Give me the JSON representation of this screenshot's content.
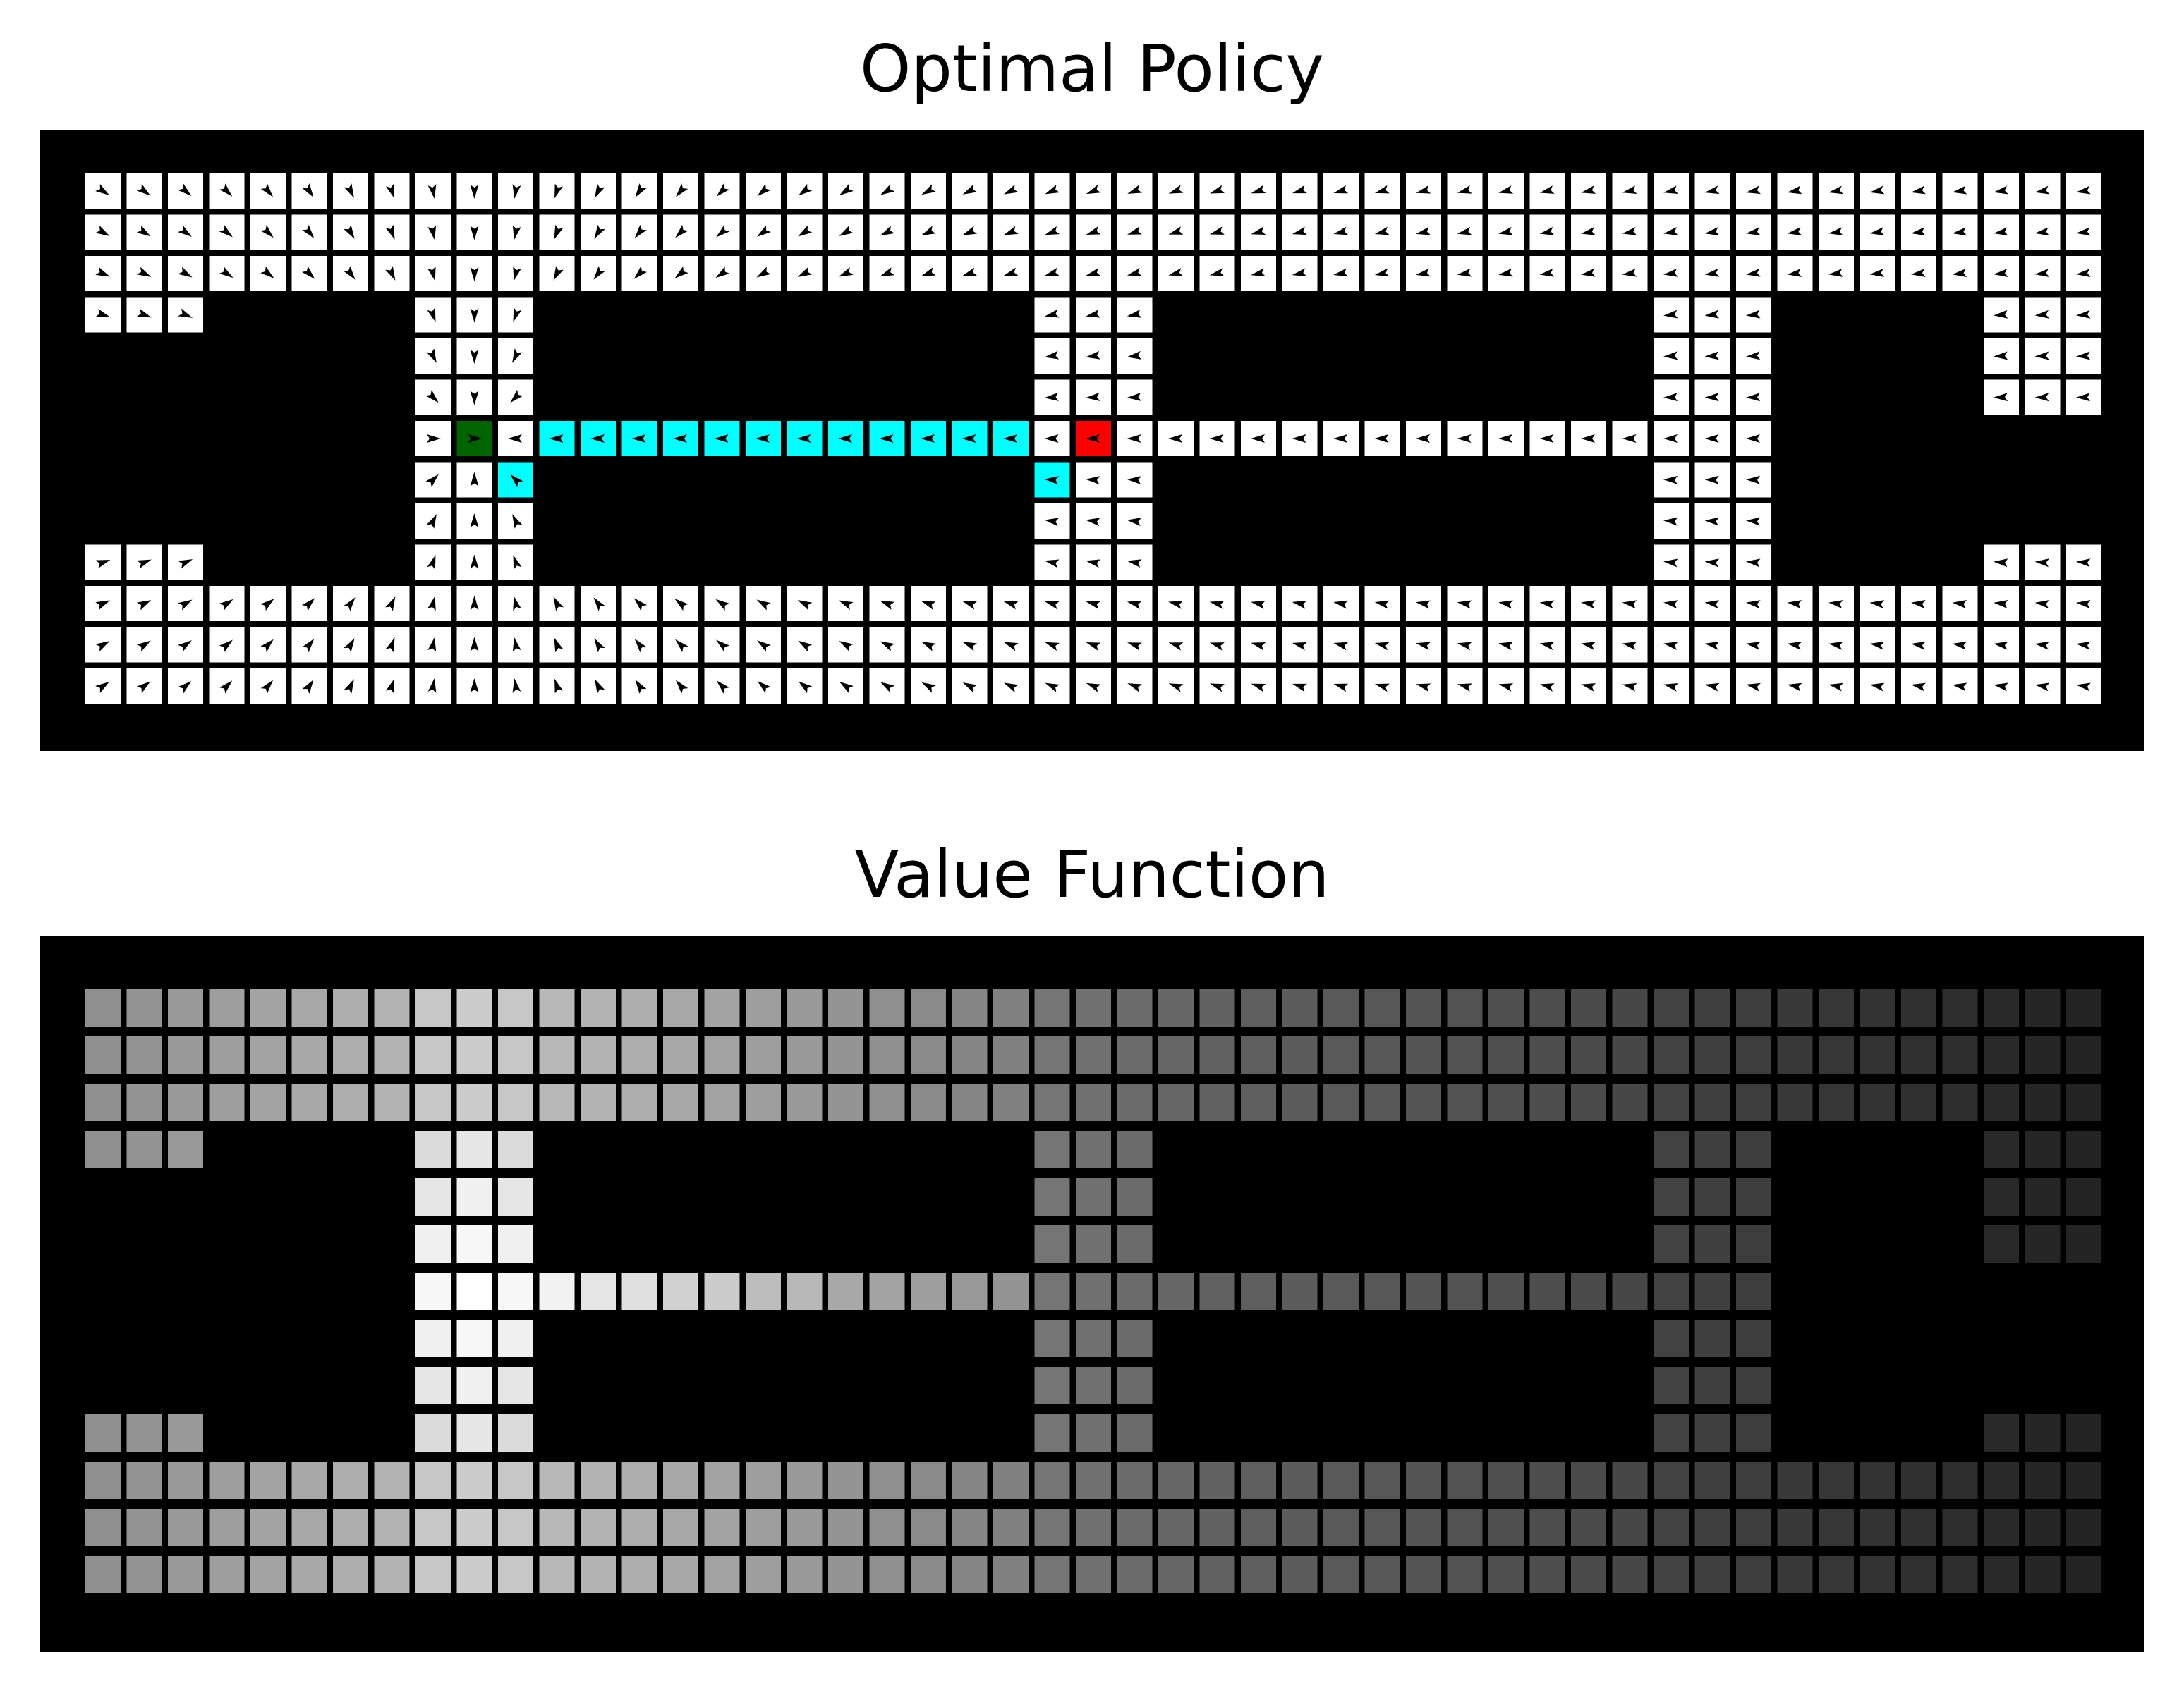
{
  "titles": {
    "policy": "Optimal Policy",
    "value": "Value Function"
  },
  "chart_data": [
    {
      "type": "heatmap",
      "title": "Optimal Policy",
      "grid": {
        "rows": 13,
        "cols": 49
      },
      "cell_colors": {
        "free": "#ffffff",
        "wall": "#000000",
        "start": "#006400",
        "goal": "#ff0000",
        "path": "#00ffff"
      },
      "map": [
        "#################################################",
        "#################################################",
        "#################################################",
        "###.......###############.........##############",
        "#################################################"
      ],
      "walls_open": {
        "full_rows": [
          0,
          1,
          2,
          10,
          11,
          12
        ],
        "partial_rows": {
          "3": [
            0,
            1,
            2,
            8,
            9,
            10,
            23,
            24,
            25,
            38,
            39,
            40,
            46,
            47,
            48
          ],
          "4": [
            8,
            9,
            10,
            23,
            24,
            25,
            38,
            39,
            40,
            46,
            47,
            48
          ],
          "5": [
            8,
            9,
            10,
            23,
            24,
            25,
            38,
            39,
            40,
            46,
            47,
            48
          ],
          "6": [
            8,
            9,
            10,
            11,
            12,
            13,
            14,
            15,
            16,
            17,
            18,
            19,
            20,
            21,
            22,
            23,
            24,
            25,
            26,
            27,
            28,
            29,
            30,
            31,
            32,
            33,
            34,
            35,
            36,
            37,
            38,
            39,
            40
          ],
          "7": [
            8,
            9,
            10,
            23,
            24,
            25,
            38,
            39,
            40
          ],
          "8": [
            8,
            9,
            10,
            23,
            24,
            25,
            38,
            39,
            40
          ],
          "9": [
            0,
            1,
            2,
            8,
            9,
            10,
            23,
            24,
            25,
            38,
            39,
            40,
            46,
            47,
            48
          ]
        }
      },
      "start": [
        6,
        9
      ],
      "goal": [
        6,
        24
      ],
      "path_cells": [
        [
          7,
          10
        ],
        [
          6,
          11
        ],
        [
          6,
          12
        ],
        [
          6,
          13
        ],
        [
          6,
          14
        ],
        [
          6,
          15
        ],
        [
          6,
          16
        ],
        [
          6,
          17
        ],
        [
          6,
          18
        ],
        [
          6,
          19
        ],
        [
          6,
          20
        ],
        [
          6,
          21
        ],
        [
          6,
          22
        ],
        [
          7,
          23
        ]
      ],
      "arrow_color": "#000000"
    },
    {
      "type": "heatmap",
      "title": "Value Function",
      "grid": {
        "rows": 13,
        "cols": 49
      },
      "colormap": "gray",
      "value_range": [
        0,
        1
      ],
      "peak_cells": [
        [
          6,
          9
        ],
        [
          7,
          9
        ],
        [
          7,
          8
        ],
        [
          6,
          8
        ]
      ],
      "column_values": [
        0.56,
        0.58,
        0.6,
        0.62,
        0.64,
        0.66,
        0.68,
        0.7,
        0.78,
        0.8,
        0.78,
        0.72,
        0.7,
        0.68,
        0.66,
        0.64,
        0.62,
        0.6,
        0.58,
        0.56,
        0.54,
        0.52,
        0.5,
        0.46,
        0.44,
        0.42,
        0.4,
        0.38,
        0.37,
        0.36,
        0.35,
        0.34,
        0.33,
        0.32,
        0.31,
        0.3,
        0.29,
        0.28,
        0.26,
        0.25,
        0.24,
        0.22,
        0.21,
        0.2,
        0.19,
        0.18,
        0.16,
        0.15,
        0.14
      ],
      "corridor_values": [
        1.0,
        0.97,
        0.94,
        0.9,
        0.86,
        0.82
      ]
    }
  ]
}
